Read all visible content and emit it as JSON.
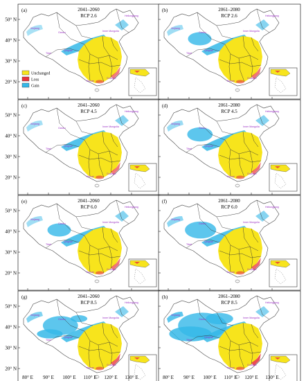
{
  "panels": [
    {
      "letter": "(a)",
      "period": "2041–2060",
      "scenario": "RCP 2.6",
      "expansion": 0.15
    },
    {
      "letter": "(b)",
      "period": "2061–2080",
      "scenario": "RCP 2.6",
      "expansion": 0.25
    },
    {
      "letter": "(c)",
      "period": "2041–2060",
      "scenario": "RCP 4.5",
      "expansion": 0.2
    },
    {
      "letter": "(d)",
      "period": "2061–2080",
      "scenario": "RCP 4.5",
      "expansion": 0.3
    },
    {
      "letter": "(e)",
      "period": "2041–2060",
      "scenario": "RCP 6.0",
      "expansion": 0.25
    },
    {
      "letter": "(f)",
      "period": "2061–2080",
      "scenario": "RCP 6.0",
      "expansion": 0.45
    },
    {
      "letter": "(g)",
      "period": "2041–2060",
      "scenario": "RCP 8.5",
      "expansion": 0.55
    },
    {
      "letter": "(h)",
      "period": "2061–2080",
      "scenario": "RCP 8.5",
      "expansion": 0.9
    }
  ],
  "lat_labels": [
    "50° N",
    "40° N",
    "30° N",
    "20° N"
  ],
  "lon_labels": [
    "80° E",
    "90° E",
    "100° E",
    "110° E",
    "120° E",
    "130° E"
  ],
  "place_names": [
    "Xinjiang",
    "Gansu",
    "Inner Mongolia",
    "Heilongjiang",
    "Tibet",
    "Qinghai",
    "Yunnan",
    "Guangxi"
  ],
  "legend": [
    {
      "label": "Unchanged",
      "color": "#f7e41c"
    },
    {
      "label": "Loss",
      "color": "#e8323c"
    },
    {
      "label": "Gain",
      "color": "#35b8e8"
    }
  ],
  "colors": {
    "unchanged": "#f7e41c",
    "loss": "#e8323c",
    "gain": "#35b8e8",
    "province_label": "#9b2fc4"
  }
}
